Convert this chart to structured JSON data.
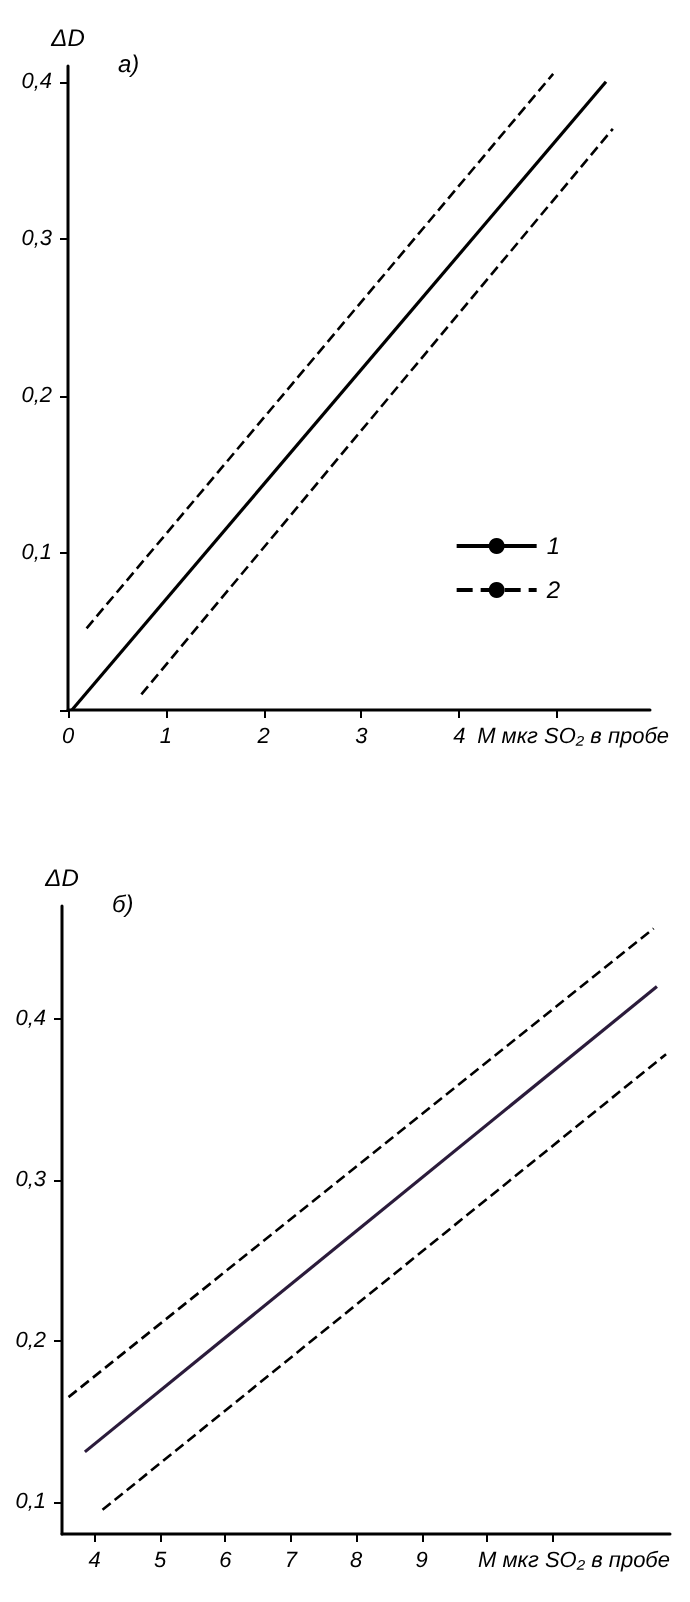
{
  "chart_data": [
    {
      "type": "line",
      "title": "а)",
      "xlabel": "M мкг SO₂ в пробе",
      "ylabel": "ΔD",
      "xlim": [
        0,
        5.95
      ],
      "ylim": [
        0,
        0.41
      ],
      "xticks": [
        {
          "value": 0,
          "label": "0"
        },
        1,
        2,
        3,
        4,
        {
          "value": 5,
          "label": null
        }
      ],
      "yticks": [
        {
          "value": 0,
          "label": null
        },
        {
          "value": 0.1,
          "label": "0,1"
        },
        {
          "value": 0.2,
          "label": "0,2"
        },
        {
          "value": 0.3,
          "label": "0,3"
        },
        {
          "value": 0.4,
          "label": "0,4"
        }
      ],
      "grid": false,
      "legend": "right",
      "marker": "none",
      "series": [
        {
          "name": "1",
          "color": "#000000",
          "line_style": "solid",
          "x": [
            0.04,
            5.5
          ],
          "values": [
            0,
            0.4
          ]
        },
        {
          "name": "2",
          "color": "#000000",
          "line_style": "dashed",
          "x": [
            0.19,
            4.96
          ],
          "values": [
            0.052,
            0.405
          ]
        },
        {
          "color": "#000000",
          "line_style": "dashed",
          "x": [
            0.75,
            5.57
          ],
          "values": [
            0.01,
            0.37
          ]
        }
      ]
    },
    {
      "type": "line",
      "title": "б)",
      "xlabel": "M мкг SO₂ в пробе",
      "ylabel": "ΔD",
      "xlim": [
        3.5,
        12.8
      ],
      "ylim": [
        0.08,
        0.47
      ],
      "xticks": [
        4,
        5,
        6,
        7,
        8,
        9,
        {
          "value": 10,
          "label": null
        },
        {
          "value": 11,
          "label": null
        }
      ],
      "yticks": [
        {
          "value": 0.1,
          "label": "0,1"
        },
        {
          "value": 0.2,
          "label": "0,2"
        },
        {
          "value": 0.3,
          "label": "0,3"
        },
        {
          "value": 0.4,
          "label": "0,4"
        }
      ],
      "grid": false,
      "legend": false,
      "marker": "none",
      "series": [
        {
          "color": "#2b1b3b",
          "line_style": "solid",
          "x": [
            3.85,
            12.6
          ],
          "values": [
            0.131,
            0.42
          ]
        },
        {
          "color": "#000000",
          "line_style": "dashed",
          "x": [
            3.6,
            12.55
          ],
          "values": [
            0.165,
            0.456
          ]
        },
        {
          "color": "#000000",
          "line_style": "dashed",
          "x": [
            4.12,
            12.74
          ],
          "values": [
            0.095,
            0.378
          ]
        }
      ]
    }
  ]
}
